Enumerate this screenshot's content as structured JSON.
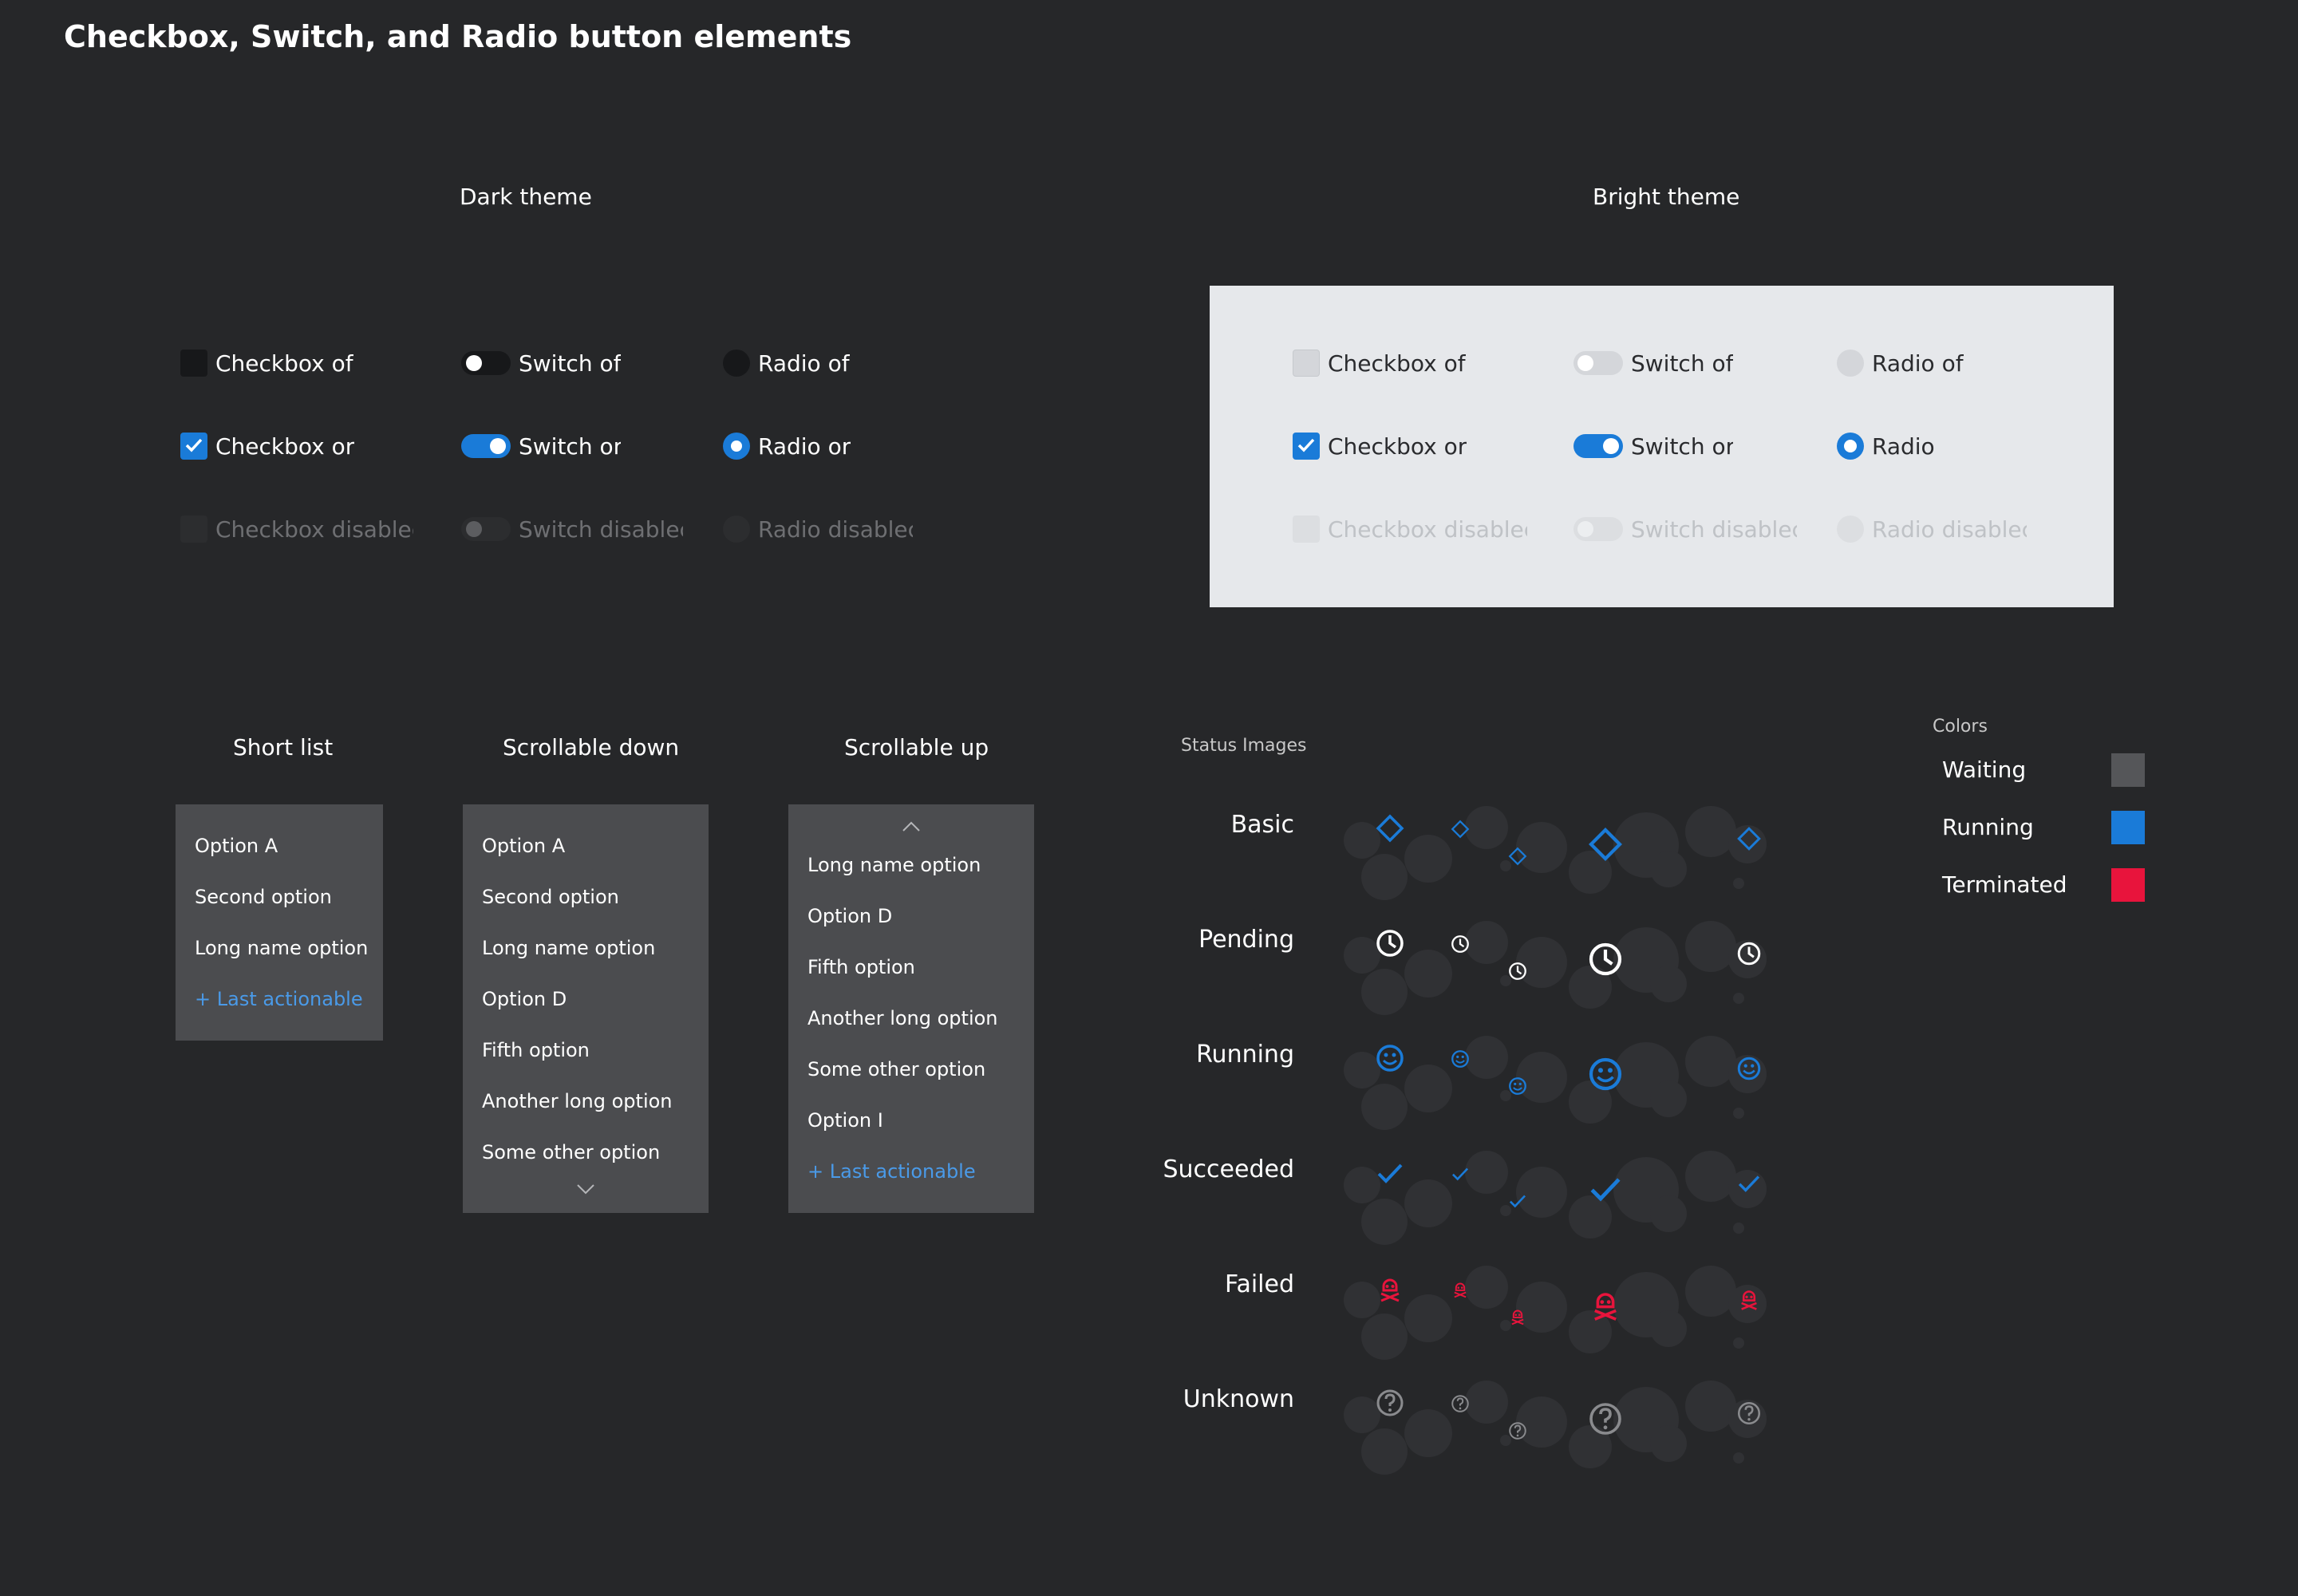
{
  "page_title": "Checkbox, Switch, and Radio button elements",
  "dark_theme": {
    "title": "Dark theme",
    "checkbox_off": "Checkbox of",
    "checkbox_on": "Checkbox or",
    "checkbox_disabled": "Checkbox disablec",
    "switch_off": "Switch of",
    "switch_on": "Switch or",
    "switch_disabled": "Switch disablec",
    "radio_off": "Radio of",
    "radio_on": "Radio or",
    "radio_disabled": "Radio disablec"
  },
  "bright_theme": {
    "title": "Bright theme",
    "checkbox_off": "Checkbox of",
    "checkbox_on": "Checkbox or",
    "checkbox_disabled": "Checkbox disablec",
    "switch_off": "Switch of",
    "switch_on": "Switch or",
    "switch_disabled": "Switch disablec",
    "radio_off": "Radio of",
    "radio_on": "Radio",
    "radio_disabled": "Radio disablec"
  },
  "short_list": {
    "title": "Short list",
    "items": [
      "Option A",
      "Second option",
      "Long name option"
    ],
    "action": "+ Last actionable"
  },
  "scroll_down_list": {
    "title": "Scrollable down",
    "items": [
      "Option A",
      "Second option",
      "Long name option",
      "Option D",
      "Fifth option",
      "Another long option",
      "Some other option"
    ]
  },
  "scroll_up_list": {
    "title": "Scrollable up",
    "items": [
      "Long name option",
      "Option D",
      "Fifth option",
      "Another long option",
      "Some other option",
      "Option I"
    ],
    "action": "+ Last actionable"
  },
  "status_images": {
    "title": "Status Images",
    "rows": [
      {
        "label": "Basic",
        "icon": "diamond-icon"
      },
      {
        "label": "Pending",
        "icon": "clock-icon"
      },
      {
        "label": "Running",
        "icon": "smiley-icon"
      },
      {
        "label": "Succeeded",
        "icon": "check-icon"
      },
      {
        "label": "Failed",
        "icon": "skull-icon"
      },
      {
        "label": "Unknown",
        "icon": "question-icon"
      }
    ]
  },
  "colors": {
    "title": "Colors",
    "items": [
      {
        "label": "Waiting",
        "color": "#555659"
      },
      {
        "label": "Running",
        "color": "#1a7bd8"
      },
      {
        "label": "Terminated",
        "color": "#e8143c"
      }
    ]
  },
  "palette": {
    "accent": "#1a7bd8",
    "failed": "#e8143c",
    "unknown": "#8a8b8e",
    "pending": "#ffffff"
  }
}
